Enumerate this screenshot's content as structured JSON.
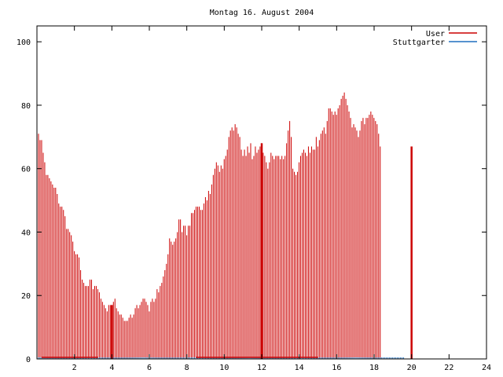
{
  "chart_data": {
    "type": "bar",
    "title": "Montag 16. August 2004",
    "xlabel": "",
    "ylabel": "",
    "xlim": [
      0,
      24
    ],
    "ylim": [
      0,
      105
    ],
    "x_ticks": [
      2,
      4,
      6,
      8,
      10,
      12,
      14,
      16,
      18,
      20,
      22,
      24
    ],
    "y_ticks": [
      0,
      20,
      40,
      60,
      80,
      100
    ],
    "grid": false,
    "legend_position": "top-right",
    "series": [
      {
        "name": "User",
        "color": "#cc0000",
        "style": "impulses",
        "x_start": 0.0,
        "x_step": 0.0833,
        "values": [
          73,
          71,
          69,
          69,
          65,
          62,
          58,
          58,
          57,
          56,
          55,
          54,
          54,
          52,
          49,
          48,
          48,
          47,
          45,
          41,
          41,
          40,
          39,
          37,
          34,
          33,
          33,
          32,
          28,
          25,
          24,
          23,
          23,
          23,
          25,
          25,
          22,
          23,
          23,
          22,
          21,
          19,
          18,
          17,
          16,
          15,
          17,
          17,
          17,
          18,
          19,
          16,
          15,
          14,
          14,
          13,
          12,
          12,
          12,
          13,
          14,
          13,
          14,
          16,
          17,
          16,
          17,
          18,
          19,
          19,
          18,
          17,
          15,
          18,
          19,
          18,
          19,
          22,
          21,
          23,
          24,
          26,
          28,
          30,
          33,
          38,
          37,
          36,
          37,
          38,
          40,
          44,
          44,
          40,
          42,
          42,
          39,
          42,
          42,
          46,
          46,
          47,
          48,
          48,
          48,
          47,
          47,
          49,
          51,
          50,
          53,
          52,
          55,
          58,
          60,
          62,
          61,
          59,
          61,
          60,
          63,
          64,
          66,
          70,
          72,
          73,
          72,
          74,
          73,
          71,
          70,
          66,
          64,
          66,
          64,
          67,
          65,
          68,
          63,
          64,
          67,
          65,
          66,
          67,
          68,
          65,
          64,
          62,
          60,
          62,
          65,
          64,
          63,
          64,
          64,
          64,
          63,
          64,
          63,
          64,
          68,
          72,
          75,
          70,
          60,
          59,
          58,
          59,
          62,
          64,
          65,
          66,
          65,
          64,
          67,
          65,
          67,
          66,
          66,
          70,
          67,
          69,
          71,
          72,
          73,
          71,
          75,
          79,
          79,
          78,
          77,
          78,
          77,
          79,
          80,
          82,
          83,
          84,
          82,
          80,
          78,
          76,
          73,
          74,
          73,
          72,
          70,
          72,
          75,
          76,
          74,
          76,
          76,
          77,
          78,
          77,
          76,
          75,
          74,
          71,
          67
        ]
      },
      {
        "name": "Stuttgarter",
        "color": "#1f6fbf",
        "style": "impulses",
        "x_start": 0.0,
        "x_step": 0.0833,
        "values": [
          0.5,
          0.5,
          0.5,
          0.5,
          0.5,
          0.5,
          0.5,
          0.5,
          0.5,
          0.5,
          0.5,
          0.5,
          0.5,
          0.5,
          0.5,
          0.5,
          0.5,
          0.5,
          0.5,
          0.5,
          0.5,
          0.5,
          0.5,
          0.5,
          0.5,
          0.5,
          0.5,
          0.5,
          0.5,
          0.5,
          0.5,
          0.5,
          0.5,
          0.5,
          0.5,
          0.5,
          0.5,
          0.5,
          0.5,
          0.5,
          0.5,
          0.5,
          0.5,
          0.5,
          0.5,
          0.5,
          0.5,
          0.5,
          0.5,
          0.5,
          0.5,
          0.5,
          0.5,
          0.5,
          0.5,
          0.5,
          0.5,
          0.5,
          0.5,
          0.5,
          0.5,
          0.5,
          0.5,
          0.5,
          0.5,
          0.5,
          0.5,
          0.5,
          0.5,
          0.5,
          0.5,
          0.5,
          0.5,
          0.5,
          0.5,
          0.5,
          0.5,
          0.5,
          0.5,
          0.5,
          0.5,
          0.5,
          0.5,
          0.5,
          0.5,
          0.5,
          0.5,
          0.5,
          0.5,
          0.5,
          0.5,
          0.5,
          0.5,
          0.5,
          0.5,
          0.5,
          0.5,
          0.5,
          0.5,
          0.5,
          0.5,
          0.5,
          0.5,
          0.5,
          0.5,
          0.5,
          0.5,
          0.5,
          0.5,
          0.5,
          0.5,
          0.5,
          0.5,
          0.5,
          0.5,
          0.5,
          0.5,
          0.5,
          0.5,
          0.5,
          0.5,
          0.5,
          0.5,
          0.5,
          0.5,
          0.5,
          0.5,
          0.5,
          0.5,
          0.5,
          0.5,
          0.5,
          0.5,
          0.5,
          0.5,
          0.5,
          0.5,
          0.5,
          0.5,
          0.5,
          0.5,
          0.5,
          0.5,
          0.5,
          0.5,
          0.5,
          0.5,
          0.5,
          0.5,
          0.5,
          0.5,
          0.5,
          0.5,
          0.5,
          0.5,
          0.5,
          0.5,
          0.5,
          0.5,
          0.5,
          0.5,
          0.5,
          0.5,
          0.5,
          0.5,
          0.5,
          0.5,
          0.5,
          0.5,
          0.5,
          0.5,
          0.5,
          0.5,
          0.5,
          0.5,
          0.5,
          0.5,
          0.5,
          0.5,
          0.5,
          0.5,
          0.5,
          0.5,
          0.5,
          0.5,
          0.5,
          0.5,
          0.5,
          0.5,
          0.5,
          0.5,
          0.5,
          0.5,
          0.5,
          0.5,
          0.5,
          0.5,
          0.5,
          0.5,
          0.5,
          0.5,
          0.5,
          0.5,
          0.5,
          0.5,
          0.5,
          0.5,
          0.5,
          0.5,
          0.5,
          0.5,
          0.5,
          0.5,
          0.5,
          0.5,
          0.5,
          0.5,
          0.5,
          0.5,
          0.5,
          0.5,
          0.5,
          0.5,
          0.5,
          0.5,
          0.5,
          0.5,
          0.5,
          0.5,
          0.5,
          0.5,
          0.5,
          0.5,
          0.5,
          0.5,
          0.5
        ]
      }
    ],
    "marker_lines": [
      4.0,
      12.0,
      20.0
    ],
    "baseline_segments": [
      [
        0.25,
        3.25
      ],
      [
        8.5,
        15.0
      ]
    ]
  }
}
